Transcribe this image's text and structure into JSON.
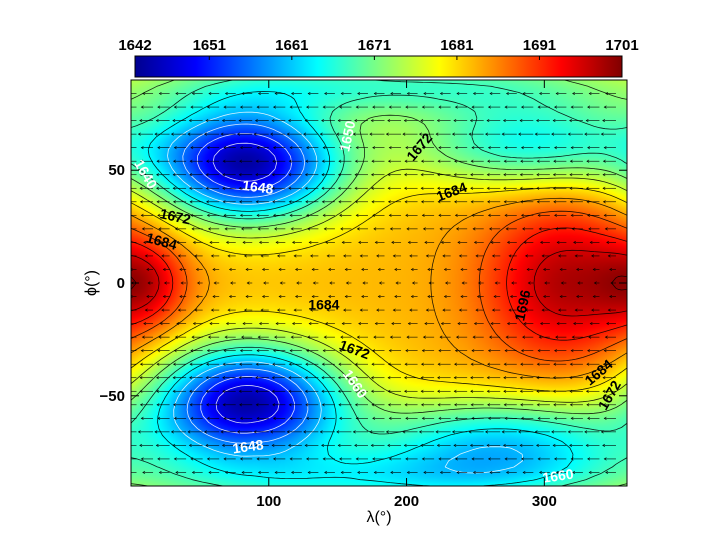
{
  "chart_data": {
    "type": "heatmap",
    "title": "",
    "xlabel": "λ(°)",
    "ylabel": "ϕ(°)",
    "xlim": [
      0,
      360
    ],
    "ylim": [
      -90,
      90
    ],
    "x_ticks": [
      100,
      200,
      300
    ],
    "x_tick_labels": [
      "100",
      "200",
      "300"
    ],
    "y_ticks": [
      50,
      0,
      -50
    ],
    "y_tick_labels": [
      "50",
      "0",
      "−50"
    ],
    "colorbar": {
      "min": 1642,
      "max": 1701,
      "ticks": [
        1642,
        1651,
        1661,
        1671,
        1681,
        1691,
        1701
      ],
      "tick_labels": [
        "1642",
        "1651",
        "1661",
        "1671",
        "1681",
        "1691",
        "1701"
      ],
      "colormap": "jet",
      "position": "top"
    },
    "field": {
      "base": 1683,
      "features": [
        {
          "kind": "low",
          "lon": 85,
          "lat": 53,
          "amp": -38,
          "sx": 48,
          "sy": 18
        },
        {
          "kind": "low",
          "lon": 85,
          "lat": -53,
          "amp": -38,
          "sx": 48,
          "sy": 18
        },
        {
          "kind": "high",
          "lon": 315,
          "lat": 0,
          "amp": 15,
          "sx": 42,
          "sy": 26
        },
        {
          "kind": "high",
          "lon": 10,
          "lat": 0,
          "amp": 10,
          "sx": 22,
          "sy": 14
        },
        {
          "kind": "low",
          "lon": 290,
          "lat": 62,
          "amp": -18,
          "sx": 65,
          "sy": 14
        },
        {
          "kind": "low",
          "lon": 270,
          "lat": -70,
          "amp": -20,
          "sx": 75,
          "sy": 14
        },
        {
          "kind": "low",
          "lon": 180,
          "lat": 88,
          "amp": -14,
          "sx": 140,
          "sy": 10
        },
        {
          "kind": "low",
          "lon": 180,
          "lat": -88,
          "amp": -14,
          "sx": 140,
          "sy": 10
        }
      ]
    },
    "contour_labels": [
      {
        "text": "1650",
        "lon": 158,
        "lat": 65,
        "rot": -78,
        "color": "white"
      },
      {
        "text": "1672",
        "lon": 210,
        "lat": 60,
        "rot": -50,
        "color": "black"
      },
      {
        "text": "1640",
        "lon": 10,
        "lat": 48,
        "rot": 60,
        "color": "white"
      },
      {
        "text": "1648",
        "lon": 92,
        "lat": 42,
        "rot": 8,
        "color": "white"
      },
      {
        "text": "1684",
        "lon": 233,
        "lat": 40,
        "rot": -20,
        "color": "black"
      },
      {
        "text": "1672",
        "lon": 32,
        "lat": 29,
        "rot": 12,
        "color": "black"
      },
      {
        "text": "1684",
        "lon": 22,
        "lat": 18,
        "rot": 15,
        "color": "black"
      },
      {
        "text": "1684",
        "lon": 140,
        "lat": -10,
        "rot": 0,
        "color": "black"
      },
      {
        "text": "1696",
        "lon": 285,
        "lat": -10,
        "rot": -78,
        "color": "black"
      },
      {
        "text": "1672",
        "lon": 162,
        "lat": -30,
        "rot": 20,
        "color": "black"
      },
      {
        "text": "1660",
        "lon": 162,
        "lat": -45,
        "rot": 55,
        "color": "white"
      },
      {
        "text": "1684",
        "lon": 340,
        "lat": -40,
        "rot": -40,
        "color": "black"
      },
      {
        "text": "1672",
        "lon": 348,
        "lat": -50,
        "rot": -60,
        "color": "black"
      },
      {
        "text": "1648",
        "lon": 85,
        "lat": -73,
        "rot": -8,
        "color": "white"
      },
      {
        "text": "1660",
        "lon": 310,
        "lat": -86,
        "rot": -8,
        "color": "white"
      }
    ],
    "vector_field": {
      "type": "zonal-wind-arrows",
      "lat_step": 6,
      "lon_step": 12,
      "direction": "westward"
    },
    "grid": false
  }
}
